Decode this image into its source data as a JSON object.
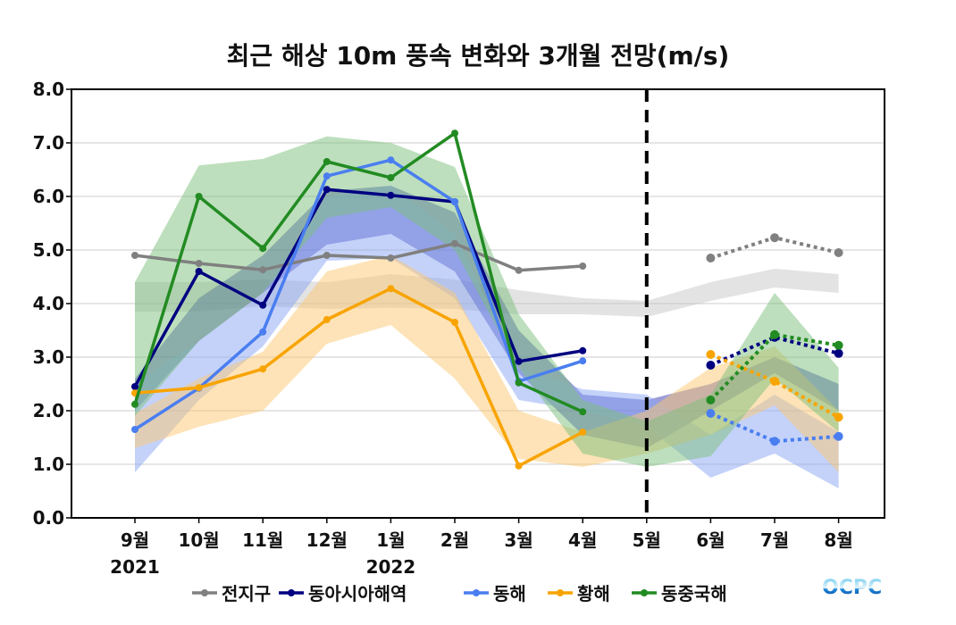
{
  "chart_data": {
    "type": "line",
    "title": "최근 해상 10m 풍속 변화와 3개월 전망(m/s)",
    "xlabel": "",
    "ylabel": "",
    "ylim": [
      0,
      8
    ],
    "yticks": [
      "0.0",
      "1.0",
      "2.0",
      "3.0",
      "4.0",
      "5.0",
      "6.0",
      "7.0",
      "8.0"
    ],
    "grid": true,
    "categories": [
      "9월",
      "10월",
      "11월",
      "12월",
      "1월",
      "2월",
      "3월",
      "4월",
      "5월",
      "6월",
      "7월",
      "8월"
    ],
    "year_labels": [
      {
        "index": 0,
        "label": "2021"
      },
      {
        "index": 4,
        "label": "2022"
      }
    ],
    "forecast_divider_index": 8,
    "legend_position": "bottom",
    "series": [
      {
        "name": "전지구",
        "color": "#808080",
        "observed": [
          4.9,
          4.75,
          4.63,
          4.9,
          4.85,
          5.12,
          4.62,
          4.7,
          null,
          null,
          null,
          null
        ],
        "forecast": [
          null,
          null,
          null,
          null,
          null,
          null,
          null,
          null,
          null,
          4.85,
          5.23,
          4.95
        ],
        "normal_band": {
          "lower": [
            3.85,
            3.85,
            3.95,
            3.9,
            3.92,
            3.9,
            3.8,
            3.8,
            3.75,
            4.05,
            4.3,
            4.2
          ],
          "upper": [
            4.4,
            4.4,
            4.45,
            4.4,
            4.55,
            4.45,
            4.25,
            4.1,
            4.05,
            4.4,
            4.65,
            4.55
          ]
        },
        "band_color": "#c8c8c8"
      },
      {
        "name": "동아시아해역",
        "color": "#000080",
        "observed": [
          2.45,
          4.6,
          3.97,
          6.13,
          6.02,
          5.9,
          2.92,
          3.12,
          null,
          null,
          null,
          null
        ],
        "forecast": [
          null,
          null,
          null,
          null,
          null,
          null,
          null,
          null,
          null,
          2.85,
          3.37,
          3.07
        ],
        "normal_band": {
          "lower": [
            2.0,
            3.3,
            4.2,
            5.1,
            5.3,
            4.6,
            2.7,
            1.55,
            1.3,
            2.0,
            2.7,
            2.0
          ],
          "upper": [
            2.6,
            4.1,
            4.9,
            6.1,
            6.2,
            5.7,
            3.5,
            2.3,
            2.2,
            2.5,
            3.0,
            2.5
          ]
        },
        "band_color": "#3c3cb4"
      },
      {
        "name": "동해",
        "color": "#4a7ef0",
        "observed": [
          1.65,
          2.42,
          3.47,
          6.38,
          6.68,
          5.9,
          2.55,
          2.93,
          null,
          null,
          null,
          null
        ],
        "forecast": [
          null,
          null,
          null,
          null,
          null,
          null,
          null,
          null,
          null,
          1.95,
          1.43,
          1.52
        ],
        "normal_band": {
          "lower": [
            0.85,
            2.2,
            3.2,
            4.8,
            4.85,
            4.1,
            2.2,
            2.0,
            1.7,
            0.75,
            1.2,
            0.55
          ],
          "upper": [
            2.5,
            3.3,
            4.2,
            6.0,
            6.2,
            5.3,
            2.8,
            2.4,
            2.3,
            1.55,
            2.3,
            1.6
          ]
        },
        "band_color": "#8aa6f5"
      },
      {
        "name": "황해",
        "color": "#f8a400",
        "observed": [
          2.33,
          2.43,
          2.78,
          3.7,
          4.28,
          3.65,
          0.97,
          1.6,
          null,
          null,
          null,
          null
        ],
        "forecast": [
          null,
          null,
          null,
          null,
          null,
          null,
          null,
          null,
          null,
          3.05,
          2.55,
          1.88
        ],
        "normal_band": {
          "lower": [
            1.3,
            1.7,
            2.0,
            3.25,
            3.6,
            2.6,
            1.1,
            0.95,
            1.2,
            1.55,
            2.1,
            0.85
          ],
          "upper": [
            1.95,
            2.6,
            3.1,
            4.6,
            4.9,
            4.2,
            2.0,
            1.6,
            2.0,
            2.8,
            3.2,
            2.0
          ]
        },
        "band_color": "#fcc870"
      },
      {
        "name": "동중국해",
        "color": "#228b22",
        "observed": [
          2.12,
          6.0,
          5.03,
          6.65,
          6.35,
          7.18,
          2.52,
          1.98,
          null,
          null,
          null,
          null
        ],
        "forecast": [
          null,
          null,
          null,
          null,
          null,
          null,
          null,
          null,
          null,
          2.2,
          3.42,
          3.22
        ],
        "normal_band": {
          "lower": [
            1.9,
            3.3,
            4.2,
            5.6,
            5.8,
            5.0,
            2.8,
            1.2,
            0.95,
            1.15,
            2.6,
            1.6
          ],
          "upper": [
            4.4,
            6.58,
            6.7,
            7.12,
            7.0,
            6.55,
            3.8,
            2.2,
            1.8,
            2.3,
            4.2,
            2.8
          ]
        },
        "band_color": "#7cc07c"
      }
    ]
  },
  "logo": {
    "text": "OCPC"
  }
}
